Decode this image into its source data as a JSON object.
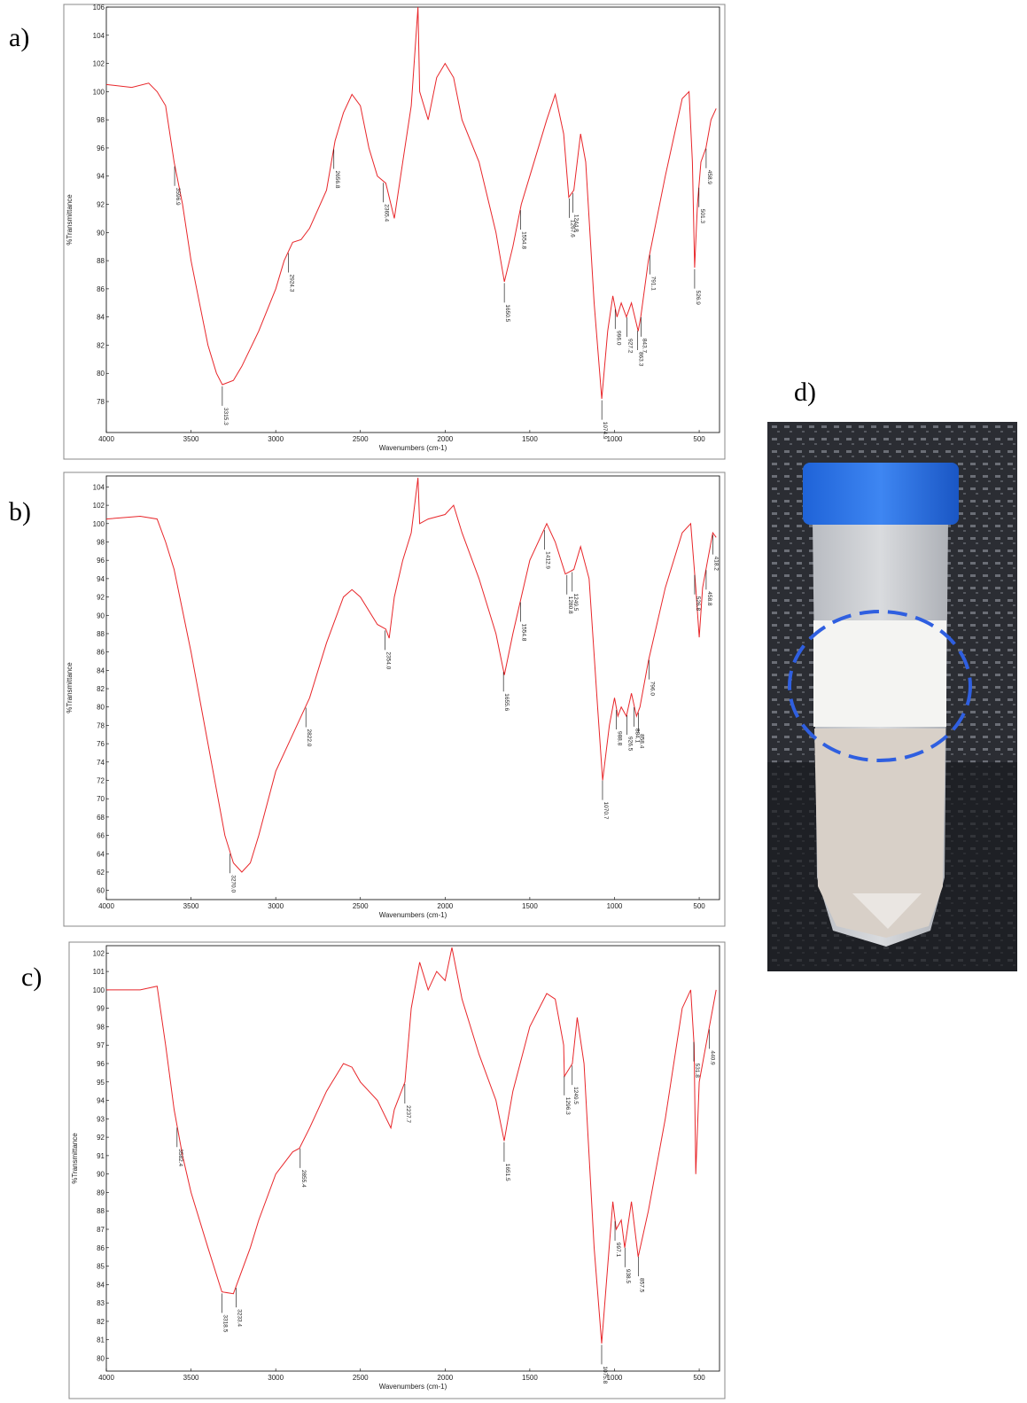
{
  "chart_data": [
    {
      "type": "line",
      "label": "a)",
      "ylabel": "%Transmittance",
      "xlabel": "Wavenumbers (cm-1)",
      "xlim": [
        4000,
        380
      ],
      "ylim": [
        75.8,
        106
      ],
      "xticks": [
        4000,
        3500,
        3000,
        2500,
        2000,
        1500,
        1000,
        500
      ],
      "yticks": [
        78,
        80,
        82,
        84,
        86,
        88,
        90,
        92,
        94,
        96,
        98,
        100,
        102,
        104,
        106
      ],
      "x": [
        4000,
        3850,
        3750,
        3700,
        3650,
        3600,
        3550,
        3500,
        3450,
        3400,
        3350,
        3315,
        3250,
        3200,
        3100,
        3000,
        2950,
        2900,
        2850,
        2800,
        2700,
        2650,
        2600,
        2550,
        2500,
        2450,
        2400,
        2350,
        2300,
        2250,
        2200,
        2160,
        2150,
        2100,
        2050,
        2000,
        1950,
        1900,
        1800,
        1700,
        1650,
        1600,
        1550,
        1500,
        1400,
        1350,
        1300,
        1270,
        1240,
        1200,
        1170,
        1120,
        1075,
        1040,
        1010,
        985,
        960,
        930,
        900,
        860,
        845,
        800,
        700,
        600,
        560,
        540,
        527,
        510,
        490,
        460,
        430,
        400
      ],
      "series": [
        {
          "color": "#e8262a",
          "values": [
            100.5,
            100.3,
            100.6,
            100,
            99,
            95,
            92,
            88,
            85,
            82,
            80,
            79.2,
            79.5,
            80.5,
            83,
            86,
            88,
            89.3,
            89.5,
            90.3,
            93,
            96.5,
            98.5,
            99.8,
            99,
            96,
            94,
            93.5,
            91,
            95,
            99,
            106,
            100,
            98,
            101,
            102,
            101,
            98,
            95,
            90,
            86.5,
            89,
            92,
            94,
            98,
            99.8,
            97,
            92.5,
            93,
            97,
            95,
            85,
            78.2,
            83,
            85.5,
            84,
            85,
            84,
            85,
            83,
            84,
            88,
            94,
            99.5,
            100,
            95,
            87.5,
            92,
            95,
            96,
            98,
            98.8
          ]
        }
      ],
      "peaks": [
        3596.9,
        3315.3,
        2924.3,
        2656.8,
        2365.4,
        1650.5,
        1554.8,
        1267.6,
        1244.8,
        1074.9,
        {
          "value": 996,
          "label": "996.0"
        },
        927.2,
        863.3,
        843.7,
        791.1,
        526.9,
        501.3,
        458.9
      ]
    },
    {
      "type": "line",
      "label": "b)",
      "ylabel": "%Transmittance",
      "xlabel": "Wavenumbers (cm-1)",
      "xlim": [
        4000,
        380
      ],
      "ylim": [
        59,
        105.2
      ],
      "xticks": [
        4000,
        3500,
        3000,
        2500,
        2000,
        1500,
        1000,
        500
      ],
      "yticks": [
        60,
        62,
        64,
        66,
        68,
        70,
        72,
        74,
        76,
        78,
        80,
        82,
        84,
        86,
        88,
        90,
        92,
        94,
        96,
        98,
        100,
        102,
        104
      ],
      "x": [
        4000,
        3800,
        3700,
        3650,
        3600,
        3500,
        3400,
        3300,
        3250,
        3200,
        3150,
        3100,
        3000,
        2900,
        2800,
        2700,
        2600,
        2550,
        2500,
        2400,
        2350,
        2330,
        2300,
        2250,
        2200,
        2160,
        2150,
        2100,
        2000,
        1950,
        1900,
        1800,
        1700,
        1650,
        1600,
        1550,
        1500,
        1400,
        1350,
        1290,
        1240,
        1200,
        1150,
        1100,
        1070,
        1030,
        1000,
        980,
        960,
        930,
        900,
        870,
        850,
        800,
        700,
        600,
        550,
        520,
        500,
        480,
        450,
        420,
        400
      ],
      "series": [
        {
          "color": "#e8262a",
          "values": [
            100.5,
            100.8,
            100.5,
            98,
            95,
            86,
            76,
            66,
            63,
            62,
            63,
            66,
            73,
            77,
            81,
            87,
            92,
            92.8,
            92,
            89,
            88.5,
            87.5,
            92,
            96,
            99,
            105,
            100,
            100.5,
            101,
            102,
            99,
            94,
            88,
            83.5,
            88,
            92,
            96,
            100,
            98,
            94.5,
            95,
            97.5,
            94,
            80,
            72,
            78,
            81,
            79,
            80,
            79,
            81.5,
            79,
            80,
            85,
            93,
            99,
            100,
            93,
            87.6,
            93,
            96,
            99,
            98.5
          ]
        }
      ],
      "peaks": [
        {
          "value": 3270,
          "label": "3270.0"
        },
        {
          "value": 2822,
          "label": "2822.0"
        },
        {
          "value": 2354,
          "label": "2354.0"
        },
        1655.6,
        1554.8,
        1412.9,
        1280.8,
        1249.5,
        1070.7,
        988.8,
        926.5,
        884.1,
        858.4,
        {
          "value": 796,
          "label": "796.0"
        },
        526.8,
        458.8,
        418.2
      ]
    },
    {
      "type": "line",
      "label": "c)",
      "ylabel": "%Transmittance",
      "xlabel": "Wavenumbers (cm-1)",
      "xlim": [
        4000,
        380
      ],
      "ylim": [
        79.3,
        102.4
      ],
      "xticks": [
        4000,
        3500,
        3000,
        2500,
        2000,
        1500,
        1000,
        500
      ],
      "yticks": [
        80,
        81,
        82,
        83,
        84,
        85,
        86,
        87,
        88,
        89,
        90,
        91,
        92,
        93,
        94,
        95,
        96,
        97,
        98,
        99,
        100,
        101,
        102
      ],
      "x": [
        4000,
        3800,
        3700,
        3650,
        3600,
        3550,
        3500,
        3400,
        3318,
        3250,
        3230,
        3150,
        3100,
        3000,
        2900,
        2860,
        2800,
        2700,
        2600,
        2550,
        2500,
        2400,
        2320,
        2300,
        2237,
        2200,
        2150,
        2100,
        2050,
        2000,
        1960,
        1900,
        1800,
        1700,
        1651,
        1600,
        1500,
        1400,
        1350,
        1300,
        1296,
        1249,
        1220,
        1180,
        1120,
        1076,
        1040,
        1010,
        990,
        960,
        940,
        900,
        860,
        800,
        700,
        600,
        550,
        530,
        520,
        500,
        460,
        420,
        400
      ],
      "series": [
        {
          "color": "#e8262a",
          "values": [
            100,
            100,
            100.2,
            97,
            93.5,
            91,
            89,
            86,
            83.6,
            83.5,
            84,
            86,
            87.5,
            90,
            91.2,
            91.4,
            92.5,
            94.5,
            96,
            95.8,
            95,
            94,
            92.5,
            93.5,
            95,
            99,
            101.5,
            100,
            101,
            100.5,
            102.3,
            99.5,
            96.5,
            94,
            91.8,
            94.5,
            98,
            99.8,
            99.5,
            97,
            95.3,
            96,
            98.5,
            96,
            86,
            80.8,
            85,
            88.5,
            87,
            87.5,
            86,
            88.5,
            85.5,
            88,
            93,
            99,
            100,
            97,
            90,
            95,
            97,
            99,
            100
          ]
        }
      ],
      "peaks": [
        3582.4,
        3318.5,
        3233.4,
        2855.4,
        2237.7,
        1651.5,
        1296.3,
        1249.5,
        1075.8,
        997.1,
        938.5,
        857.5,
        531.8,
        440.9
      ]
    }
  ],
  "photo": {
    "label": "d)"
  }
}
